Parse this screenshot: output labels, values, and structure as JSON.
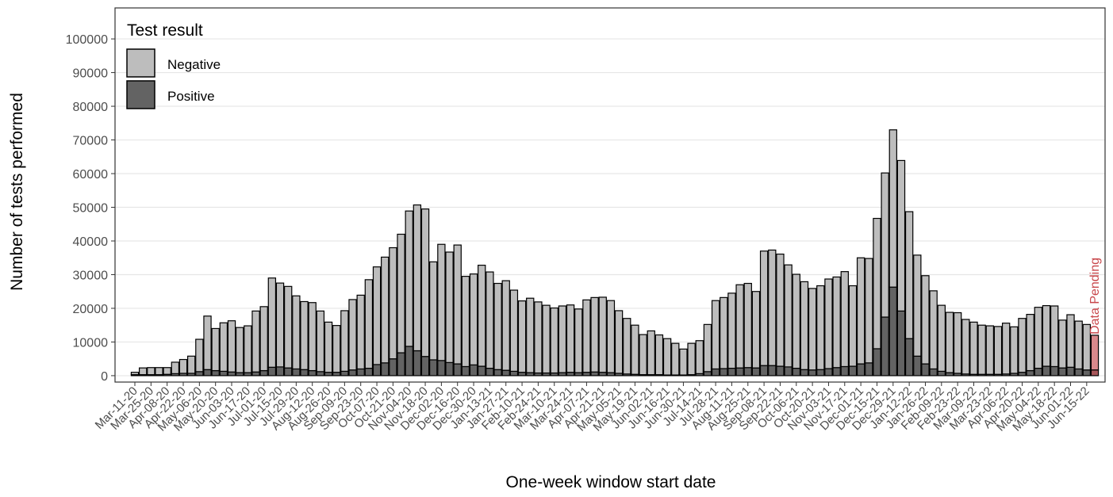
{
  "chart_data": {
    "type": "stacked_bar",
    "x_label": "One-week window start date",
    "y_label": "Number of tests performed",
    "legend_title": "Test result",
    "legend_position": "top-left",
    "annotation": "Data Pending",
    "annotation_color": "#c8474b",
    "grid": true,
    "ylim": [
      -1900,
      109200
    ],
    "yticks": [
      0,
      10000,
      20000,
      30000,
      40000,
      50000,
      60000,
      70000,
      80000,
      90000,
      100000
    ],
    "categories": [
      "Mar-11-20",
      null,
      "Mar-25-20",
      null,
      "Apr-08-20",
      null,
      "Apr-22-20",
      null,
      "May-06-20",
      null,
      "May-20-20",
      null,
      "Jun-03-20",
      null,
      "Jun-17-20",
      null,
      "Jul-01-20",
      null,
      "Jul-15-20",
      null,
      "Jul-29-20",
      null,
      "Aug-12-20",
      null,
      "Aug-26-20",
      null,
      "Sep-09-20",
      null,
      "Sep-23-20",
      null,
      "Oct-07-20",
      null,
      "Oct-21-20",
      null,
      "Nov-04-20",
      null,
      "Nov-18-20",
      null,
      "Dec-02-20",
      null,
      "Dec-16-20",
      null,
      "Dec-30-20",
      null,
      "Jan-13-21",
      null,
      "Jan-27-21",
      null,
      "Feb-10-21",
      null,
      "Feb-24-21",
      null,
      "Mar-10-21",
      null,
      "Mar-24-21",
      null,
      "Apr-07-21",
      null,
      "Apr-21-21",
      null,
      "May-05-21",
      null,
      "May-19-21",
      null,
      "Jun-02-21",
      null,
      "Jun-16-21",
      null,
      "Jun-30-21",
      null,
      "Jul-14-21",
      null,
      "Jul-28-21",
      null,
      "Aug-11-21",
      null,
      "Aug-25-21",
      null,
      "Sep-08-21",
      null,
      "Sep-22-21",
      null,
      "Oct-06-21",
      null,
      "Oct-20-21",
      null,
      "Nov-03-21",
      null,
      "Nov-17-21",
      null,
      "Dec-01-21",
      null,
      "Dec-15-21",
      null,
      "Dec-29-21",
      null,
      "Jan-12-22",
      null,
      "Jan-26-22",
      null,
      "Feb-09-22",
      null,
      "Feb-23-22",
      null,
      "Mar-09-22",
      null,
      "Mar-23-22",
      null,
      "Apr-06-22",
      null,
      "Apr-20-22",
      null,
      "May-04-22",
      null,
      "May-18-22",
      null,
      "Jun-01-22",
      null,
      "Jun-15-22",
      null
    ],
    "series": [
      {
        "name": "Negative",
        "color": "#bdbdbd",
        "pending_color": "#d9898c",
        "values": [
          700,
          2000,
          2100,
          2100,
          2000,
          3400,
          4100,
          5100,
          9600,
          15900,
          12500,
          14400,
          15200,
          13400,
          13900,
          18100,
          19000,
          26500,
          24900,
          24200,
          21700,
          20200,
          20200,
          18000,
          14900,
          13900,
          18000,
          20900,
          21900,
          26300,
          29000,
          31400,
          33000,
          35200,
          40200,
          43300,
          43800,
          29100,
          34500,
          32800,
          35300,
          26800,
          27000,
          30000,
          28600,
          25600,
          26600,
          24100,
          21200,
          22100,
          21100,
          20100,
          19300,
          19800,
          20000,
          18900,
          21500,
          22100,
          22300,
          21400,
          18600,
          16500,
          14600,
          11900,
          13000,
          11800,
          10800,
          9400,
          7700,
          9300,
          9800,
          14000,
          20300,
          21100,
          22300,
          24700,
          25000,
          22700,
          34000,
          34300,
          33300,
          30300,
          27900,
          26100,
          24200,
          24900,
          26600,
          26900,
          28200,
          23900,
          31500,
          31000,
          38700,
          42800,
          46700,
          44700,
          37700,
          30000,
          26200,
          23200,
          19600,
          17900,
          18000,
          16200,
          15500,
          14600,
          14400,
          14200,
          15100,
          13800,
          16000,
          16700,
          18100,
          18000,
          18000,
          14200,
          15600,
          14200,
          13500,
          10300
        ]
      },
      {
        "name": "Positive",
        "color": "#636363",
        "pending_color": "#a8575a",
        "values": [
          300,
          300,
          300,
          300,
          400,
          600,
          700,
          700,
          1200,
          1800,
          1500,
          1300,
          1100,
          900,
          900,
          1100,
          1500,
          2500,
          2600,
          2300,
          2000,
          1800,
          1500,
          1200,
          1000,
          1000,
          1300,
          1700,
          2000,
          2200,
          3300,
          3800,
          5000,
          6800,
          8700,
          7400,
          5700,
          4700,
          4500,
          3900,
          3500,
          2700,
          3200,
          2800,
          2200,
          1800,
          1600,
          1300,
          1000,
          900,
          800,
          800,
          800,
          900,
          1000,
          900,
          1000,
          1100,
          1000,
          900,
          700,
          500,
          400,
          300,
          300,
          300,
          200,
          200,
          200,
          300,
          600,
          1200,
          2000,
          2100,
          2200,
          2300,
          2400,
          2300,
          3000,
          3000,
          2800,
          2600,
          2200,
          1800,
          1700,
          1800,
          2100,
          2400,
          2700,
          2800,
          3500,
          3800,
          8000,
          17400,
          26300,
          19200,
          11000,
          5800,
          3500,
          2000,
          1300,
          900,
          700,
          500,
          400,
          400,
          400,
          400,
          500,
          700,
          1000,
          1500,
          2200,
          2800,
          2700,
          2300,
          2500,
          2000,
          1700,
          1700
        ]
      }
    ]
  }
}
